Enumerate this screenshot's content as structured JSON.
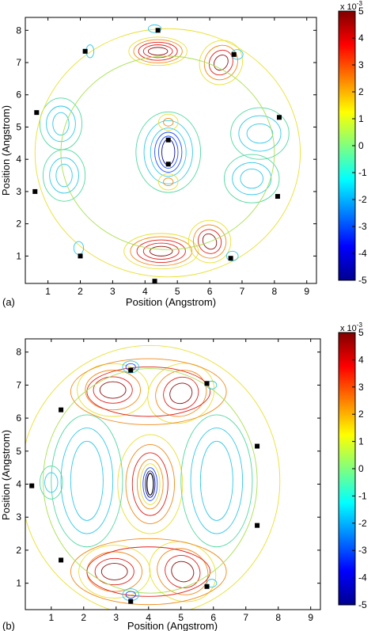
{
  "chart_data": [
    {
      "type": "contour",
      "panel_label": "(a)",
      "xlabel": "Position (Angstrom)",
      "ylabel": "Position (Angstrom)",
      "xlim": [
        0.3,
        9.3
      ],
      "ylim": [
        0.15,
        8.4
      ],
      "xticks": [
        1,
        2,
        3,
        4,
        5,
        6,
        7,
        8,
        9
      ],
      "yticks": [
        1,
        2,
        3,
        4,
        5,
        6,
        7,
        8
      ],
      "colorbar": {
        "min": -5,
        "max": 5,
        "ticks": [
          -5,
          -4,
          -3,
          -2,
          -1,
          0,
          1,
          2,
          3,
          4,
          5
        ],
        "exponent_label": "x 10",
        "exponent": "-3",
        "colormap": "jet"
      },
      "atoms": [
        {
          "x": 4.4,
          "y": 8.0
        },
        {
          "x": 2.15,
          "y": 7.35
        },
        {
          "x": 6.75,
          "y": 7.25
        },
        {
          "x": 0.65,
          "y": 5.45
        },
        {
          "x": 8.15,
          "y": 5.3
        },
        {
          "x": 4.72,
          "y": 4.6
        },
        {
          "x": 4.72,
          "y": 3.85
        },
        {
          "x": 0.6,
          "y": 3.0
        },
        {
          "x": 8.1,
          "y": 2.85
        },
        {
          "x": 2.0,
          "y": 1.0
        },
        {
          "x": 6.65,
          "y": 0.93
        },
        {
          "x": 4.3,
          "y": 0.22
        }
      ]
    },
    {
      "type": "contour",
      "panel_label": "(b)",
      "xlabel": "Position (Angstrom)",
      "ylabel": "Position (Angstrom)",
      "xlim": [
        0.2,
        9.3
      ],
      "ylim": [
        0.2,
        8.4
      ],
      "xticks": [
        1,
        2,
        3,
        4,
        5,
        6,
        7,
        8,
        9
      ],
      "yticks": [
        1,
        2,
        3,
        4,
        5,
        6,
        7,
        8
      ],
      "colorbar": {
        "min": -5,
        "max": 5,
        "ticks": [
          -5,
          -4,
          -3,
          -2,
          -1,
          0,
          1,
          2,
          3,
          4,
          5
        ],
        "exponent_label": "x 10",
        "exponent": "-3",
        "colormap": "jet"
      },
      "atoms": [
        {
          "x": 3.45,
          "y": 7.45
        },
        {
          "x": 5.8,
          "y": 7.05
        },
        {
          "x": 1.3,
          "y": 6.25
        },
        {
          "x": 7.35,
          "y": 5.15
        },
        {
          "x": 0.4,
          "y": 3.95
        },
        {
          "x": 7.35,
          "y": 2.75
        },
        {
          "x": 1.3,
          "y": 1.7
        },
        {
          "x": 5.8,
          "y": 0.9
        },
        {
          "x": 3.45,
          "y": 0.45
        }
      ]
    }
  ]
}
